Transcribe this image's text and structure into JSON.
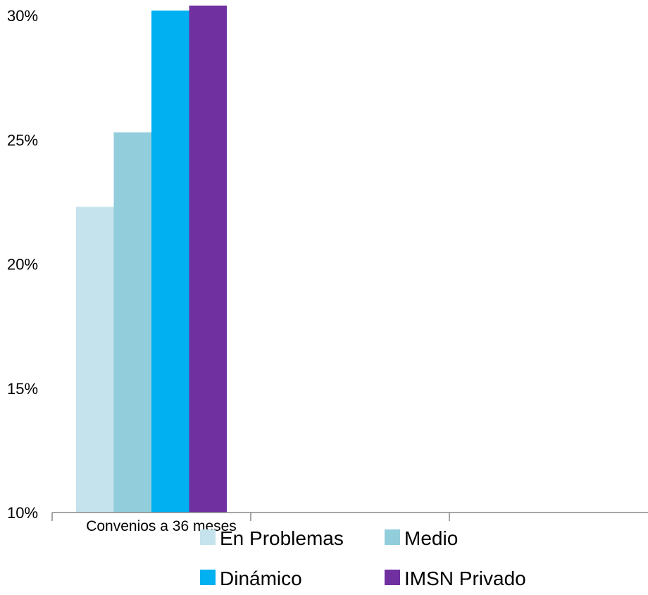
{
  "chart_data": {
    "type": "bar",
    "categories": [
      "Convenios a 36 meses",
      "",
      ""
    ],
    "series": [
      {
        "name": "En Problemas",
        "values": [
          22.3,
          null,
          null
        ],
        "color": "#c5e3ec"
      },
      {
        "name": "Medio",
        "values": [
          25.3,
          null,
          null
        ],
        "color": "#92cddc"
      },
      {
        "name": "Dinámico",
        "values": [
          30.2,
          null,
          null
        ],
        "color": "#00b0f0"
      },
      {
        "name": "IMSN Privado",
        "values": [
          30.4,
          null,
          null
        ],
        "color": "#7030a0"
      }
    ],
    "ylim": [
      10,
      30
    ],
    "yticks": [
      "10%",
      "15%",
      "20%",
      "25%",
      "30%"
    ],
    "ytick_values": [
      10,
      15,
      20,
      25,
      30
    ],
    "grid": false,
    "legend_position": "bottom",
    "title": "",
    "xlabel": "",
    "ylabel": ""
  }
}
